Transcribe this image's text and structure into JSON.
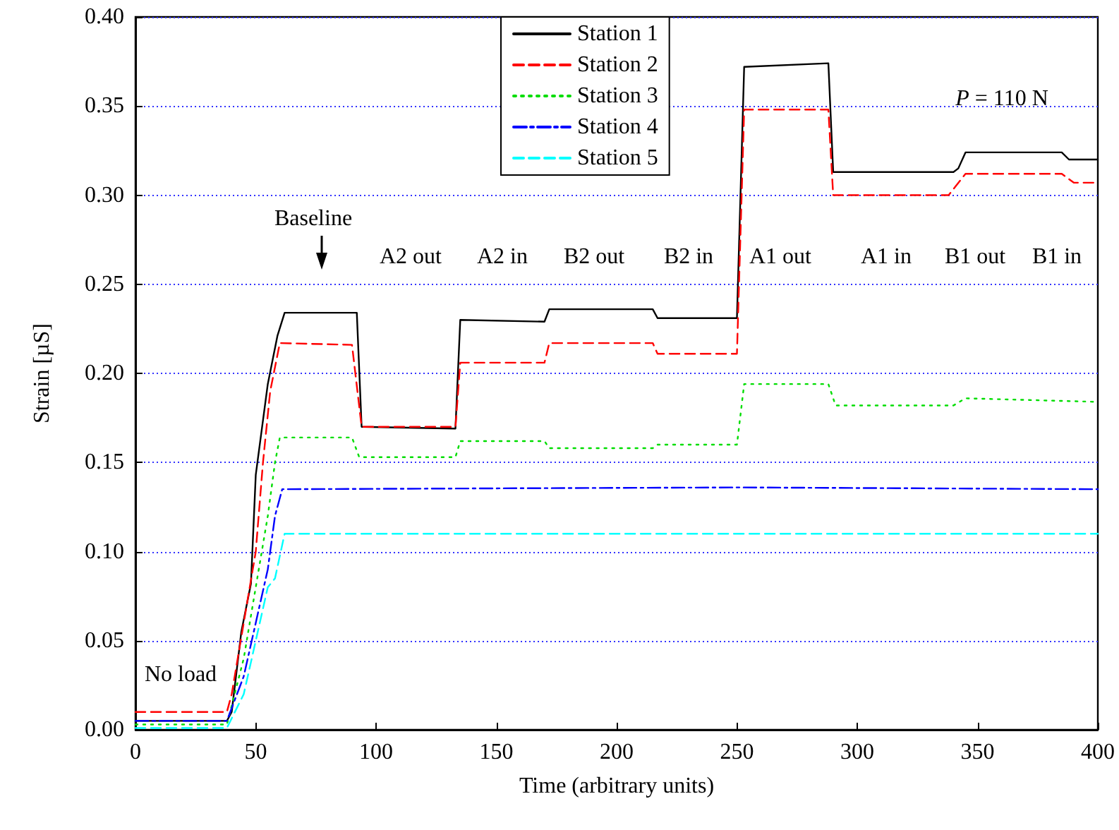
{
  "chart_data": {
    "type": "line",
    "xlabel": "Time (arbitrary units)",
    "ylabel": "Strain [µS]",
    "xlim": [
      0,
      400
    ],
    "xticks": [
      0,
      50,
      100,
      150,
      200,
      250,
      300,
      350,
      400
    ],
    "ylim": [
      0,
      0.4
    ],
    "yticks": [
      {
        "value": 0,
        "label": "0.00"
      },
      0.05,
      {
        "value": 0.1,
        "label": "0.10"
      },
      0.15,
      {
        "value": 0.2,
        "label": "0.20"
      },
      0.25,
      {
        "value": 0.3,
        "label": "0.30"
      },
      0.35,
      {
        "value": 0.4,
        "label": "0.40"
      }
    ],
    "grid": "y",
    "legend": "top",
    "marker": "none",
    "series": [
      {
        "name": "Station 1",
        "color": "#000000",
        "line_style": "solid",
        "x": [
          0,
          38,
          40,
          44,
          48,
          50,
          55,
          59,
          62,
          92,
          94,
          133,
          135,
          170,
          172,
          215,
          217,
          250,
          253,
          288,
          290,
          340,
          342,
          345,
          385,
          388,
          400
        ],
        "values": [
          0.005,
          0.005,
          0.01,
          0.055,
          0.082,
          0.143,
          0.194,
          0.221,
          0.234,
          0.234,
          0.17,
          0.169,
          0.23,
          0.229,
          0.236,
          0.236,
          0.231,
          0.231,
          0.372,
          0.374,
          0.313,
          0.313,
          0.315,
          0.324,
          0.324,
          0.32,
          0.32
        ]
      },
      {
        "name": "Station 2",
        "color": "#ff0000",
        "line_style": "dashed",
        "x": [
          0,
          38,
          40,
          45,
          50,
          53,
          56,
          60,
          90,
          94,
          133,
          135,
          170,
          172,
          215,
          217,
          250,
          253,
          288,
          290,
          338,
          345,
          385,
          390,
          400
        ],
        "values": [
          0.01,
          0.01,
          0.02,
          0.06,
          0.1,
          0.15,
          0.19,
          0.217,
          0.216,
          0.17,
          0.17,
          0.206,
          0.206,
          0.217,
          0.217,
          0.211,
          0.211,
          0.348,
          0.348,
          0.3,
          0.3,
          0.312,
          0.312,
          0.307,
          0.307
        ]
      },
      {
        "name": "Station 3",
        "color": "#00dd00",
        "line_style": "dotted",
        "x": [
          0,
          38,
          45,
          50,
          55,
          58,
          60,
          90,
          93,
          133,
          135,
          170,
          172,
          215,
          217,
          250,
          253,
          288,
          291,
          340,
          345,
          400
        ],
        "values": [
          0.003,
          0.003,
          0.04,
          0.08,
          0.12,
          0.15,
          0.164,
          0.164,
          0.153,
          0.153,
          0.162,
          0.162,
          0.158,
          0.158,
          0.16,
          0.16,
          0.194,
          0.194,
          0.182,
          0.182,
          0.186,
          0.184
        ]
      },
      {
        "name": "Station 4",
        "color": "#0000ff",
        "line_style": "dashdot",
        "x": [
          0,
          38,
          45,
          50,
          55,
          58,
          61,
          250,
          400
        ],
        "values": [
          0.005,
          0.005,
          0.03,
          0.06,
          0.09,
          0.12,
          0.135,
          0.136,
          0.135
        ]
      },
      {
        "name": "Station 5",
        "color": "#00ffff",
        "line_style": "dashed",
        "x": [
          0,
          38,
          45,
          50,
          55,
          58,
          62,
          400
        ],
        "values": [
          0.001,
          0.001,
          0.02,
          0.05,
          0.08,
          0.085,
          0.11,
          0.11
        ]
      }
    ],
    "annotations": [
      "No load",
      "Baseline",
      "A2 out",
      "A2 in",
      "B2 out",
      "B2 in",
      "A1 out",
      "A1 in",
      "B1 out",
      "B1 in",
      "P = 110 N"
    ]
  }
}
